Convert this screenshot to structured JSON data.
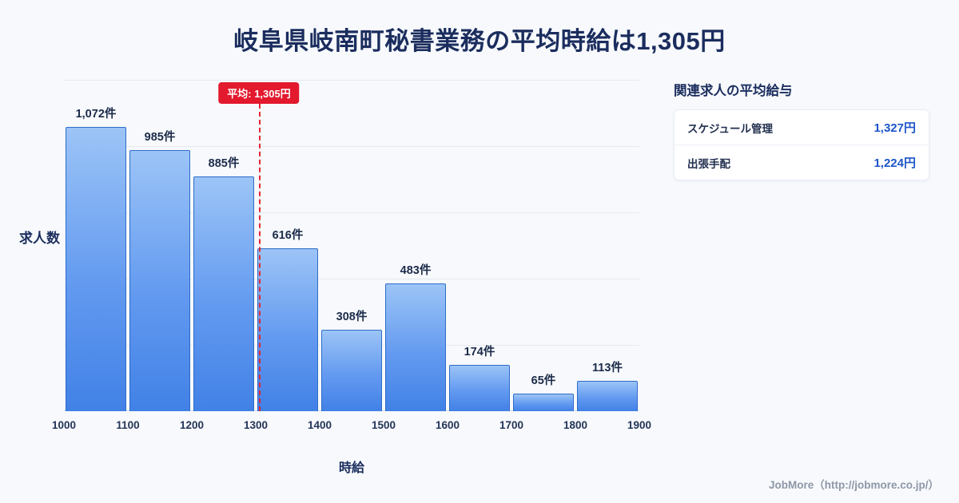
{
  "chart_data": {
    "type": "bar",
    "title": "岐阜県岐南町秘書業務の平均時給は1,305円",
    "xlabel": "時給",
    "ylabel": "求人数",
    "bin_edges": [
      1000,
      1100,
      1200,
      1300,
      1400,
      1500,
      1600,
      1700,
      1800,
      1900
    ],
    "x_ticks": [
      "1000",
      "1100",
      "1200",
      "1300",
      "1400",
      "1500",
      "1600",
      "1700",
      "1800",
      "1900"
    ],
    "values": [
      1072,
      985,
      885,
      616,
      308,
      483,
      174,
      65,
      113
    ],
    "value_labels": [
      "1,072件",
      "985件",
      "885件",
      "616件",
      "308件",
      "483件",
      "174件",
      "65件",
      "113件"
    ],
    "ylim": [
      0,
      1250
    ],
    "grid": true,
    "mean_line": {
      "value": 1305,
      "label": "平均: 1,305円"
    }
  },
  "side_panel": {
    "heading": "関連求人の平均給与",
    "rows": [
      {
        "label": "スケジュール管理",
        "value": "1,327円"
      },
      {
        "label": "出張手配",
        "value": "1,224円"
      }
    ]
  },
  "footer": {
    "credit": "JobMore（http://jobmore.co.jp/）"
  },
  "colors": {
    "background": "#f7f9fc",
    "title_navy": "#1b2d5e",
    "bar_gradient_top": "#9cc4f6",
    "bar_gradient_bottom": "#4181e6",
    "bar_border": "#2e6cc8",
    "mean_red": "#e3192e",
    "value_blue": "#1d55c9",
    "gridline": "#e4eaf3"
  }
}
